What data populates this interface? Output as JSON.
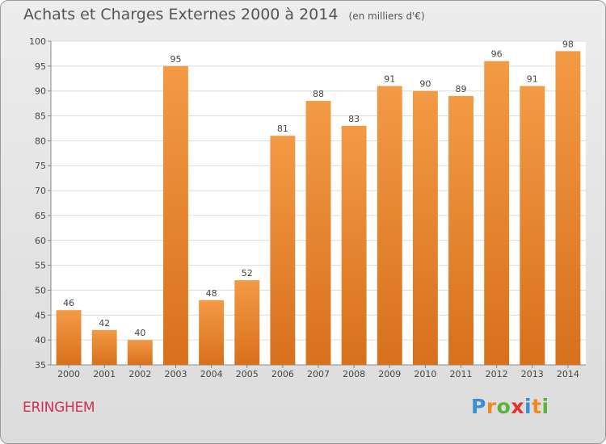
{
  "header": {
    "title": "Achats et Charges Externes 2000 à 2014",
    "subtitle": "(en milliers d'€)"
  },
  "footer": {
    "commune": "ERINGHEM",
    "logo_text": "Proxiti",
    "logo_colors": [
      "#3a8fd6",
      "#f08a1e",
      "#5bb33a",
      "#e2322f",
      "#3a8fd6",
      "#f08a1e",
      "#5bb33a"
    ]
  },
  "chart_data": {
    "type": "bar",
    "categories": [
      "2000",
      "2001",
      "2002",
      "2003",
      "2004",
      "2005",
      "2006",
      "2007",
      "2008",
      "2009",
      "2010",
      "2011",
      "2012",
      "2013",
      "2014"
    ],
    "values": [
      46,
      42,
      40,
      95,
      48,
      52,
      81,
      88,
      83,
      91,
      90,
      89,
      96,
      91,
      98
    ],
    "title": "Achats et Charges Externes 2000 à 2014",
    "subtitle": "(en milliers d'€)",
    "ylim": [
      35,
      100
    ],
    "yticks": [
      35,
      40,
      45,
      50,
      55,
      60,
      65,
      70,
      75,
      80,
      85,
      90,
      95,
      100
    ],
    "grid": true,
    "bar_color": "#f39a45",
    "bar_color_dark": "#d8701c"
  }
}
